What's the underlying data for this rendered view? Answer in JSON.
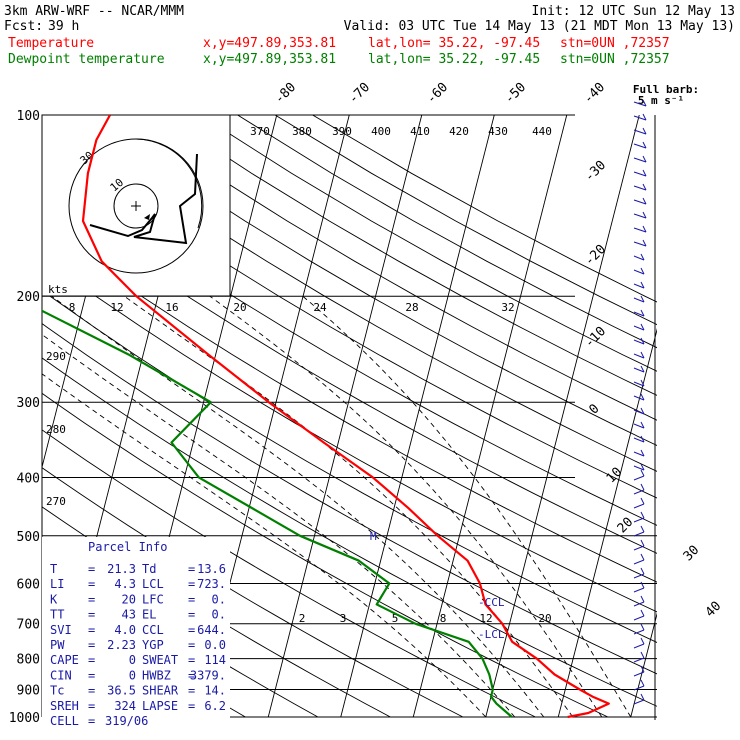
{
  "header": {
    "model": "3km ARW-WRF -- NCAR/MMM",
    "init": "Init: 12 UTC Sun 12 May 13",
    "fcst_label": "Fcst:",
    "fcst_value": "39 h",
    "valid": "Valid: 03 UTC Tue 14 May 13 (21 MDT Mon 13 May 13)",
    "temp_line": {
      "label": "Temperature",
      "xy": "x,y=497.89,353.81",
      "latlon": "lat,lon= 35.22, -97.45",
      "stn": "stn=0UN ,72357",
      "color": "#ff0000"
    },
    "dew_line": {
      "label": "Dewpoint temperature",
      "xy": "x,y=497.89,353.81",
      "latlon": "lat,lon= 35.22, -97.45",
      "stn": "stn=0UN ,72357",
      "color": "#008000"
    }
  },
  "chart_data": {
    "type": "line",
    "pressure_levels": [
      "100",
      "200",
      "300",
      "400",
      "500",
      "600",
      "700",
      "800",
      "900",
      "1000"
    ],
    "temperature_ticks": [
      "-80",
      "-70",
      "-60",
      "-50",
      "-40",
      "-30",
      "-20",
      "-10",
      "0",
      "10",
      "20",
      "30",
      "40"
    ],
    "theta_labels": [
      "370",
      "380",
      "390",
      "400",
      "410",
      "420",
      "430",
      "440"
    ],
    "mixing_ratio_labels_upper": [
      "8",
      "12",
      "16",
      "20",
      "24",
      "28",
      "32"
    ],
    "mixing_ratio_labels_lower": [
      "2",
      "3",
      "5",
      "8",
      "12",
      "20"
    ],
    "theta_e_labels": [
      "290",
      "280",
      "270"
    ],
    "annotations": {
      "lcl": "LCL",
      "ccl": "CCL",
      "m": "M"
    },
    "series": [
      {
        "name": "Temperature",
        "color": "#ff0000",
        "points": [
          [
            1000,
            21.3
          ],
          [
            985,
            24
          ],
          [
            950,
            26.5
          ],
          [
            925,
            24
          ],
          [
            900,
            22
          ],
          [
            850,
            18
          ],
          [
            800,
            15
          ],
          [
            750,
            11
          ],
          [
            700,
            9
          ],
          [
            650,
            6
          ],
          [
            600,
            4.5
          ],
          [
            550,
            2
          ],
          [
            500,
            -3
          ],
          [
            450,
            -8
          ],
          [
            400,
            -14
          ],
          [
            350,
            -22
          ],
          [
            300,
            -31
          ],
          [
            250,
            -41
          ],
          [
            200,
            -53
          ],
          [
            175,
            -59
          ],
          [
            150,
            -63
          ],
          [
            125,
            -64
          ],
          [
            110,
            -64
          ],
          [
            100,
            -63
          ]
        ]
      },
      {
        "name": "Dewpoint temperature",
        "color": "#008000",
        "points": [
          [
            1000,
            13.6
          ],
          [
            950,
            11
          ],
          [
            925,
            10
          ],
          [
            900,
            10
          ],
          [
            850,
            9
          ],
          [
            800,
            7.5
          ],
          [
            750,
            5
          ],
          [
            700,
            -3
          ],
          [
            650,
            -9
          ],
          [
            600,
            -8
          ],
          [
            550,
            -13
          ],
          [
            500,
            -22
          ],
          [
            400,
            -38
          ],
          [
            350,
            -43
          ],
          [
            300,
            -39
          ],
          [
            250,
            -52
          ],
          [
            200,
            -70
          ],
          [
            175,
            -75
          ],
          [
            150,
            -78
          ],
          [
            125,
            -80
          ],
          [
            100,
            -84
          ]
        ]
      }
    ],
    "hodograph": {
      "unit": "kts",
      "ring_labels": [
        "30",
        "10"
      ]
    },
    "wind_panel": {
      "title": "Full barb:",
      "subtitle": "5 m s⁻¹"
    }
  },
  "parcel_info": {
    "title": "Parcel Info",
    "rows": [
      [
        "T",
        "=",
        "21.3",
        "Td",
        "=",
        "13.6"
      ],
      [
        "LI",
        "=",
        "4.3",
        "LCL",
        "=",
        "723."
      ],
      [
        "K",
        "=",
        "20",
        "LFC",
        "=",
        "0."
      ],
      [
        "TT",
        "=",
        "43",
        "EL",
        "=",
        "0."
      ],
      [
        "SVI",
        "=",
        "4.0",
        "CCL",
        "=",
        "644."
      ],
      [
        "PW",
        "=",
        "2.23",
        "YGP",
        "=",
        "0.0"
      ],
      [
        "CAPE",
        "=",
        "0",
        "SWEAT",
        "=",
        "114"
      ],
      [
        "CIN",
        "=",
        "0",
        "HWBZ",
        "=",
        "3379."
      ],
      [
        "Tc",
        "=",
        "36.5",
        "SHEAR",
        "=",
        "14."
      ],
      [
        "SREH",
        "=",
        "324",
        "LAPSE",
        "=",
        "6.2"
      ],
      [
        "CELL",
        "=",
        "319/06",
        "",
        "",
        ""
      ]
    ]
  }
}
